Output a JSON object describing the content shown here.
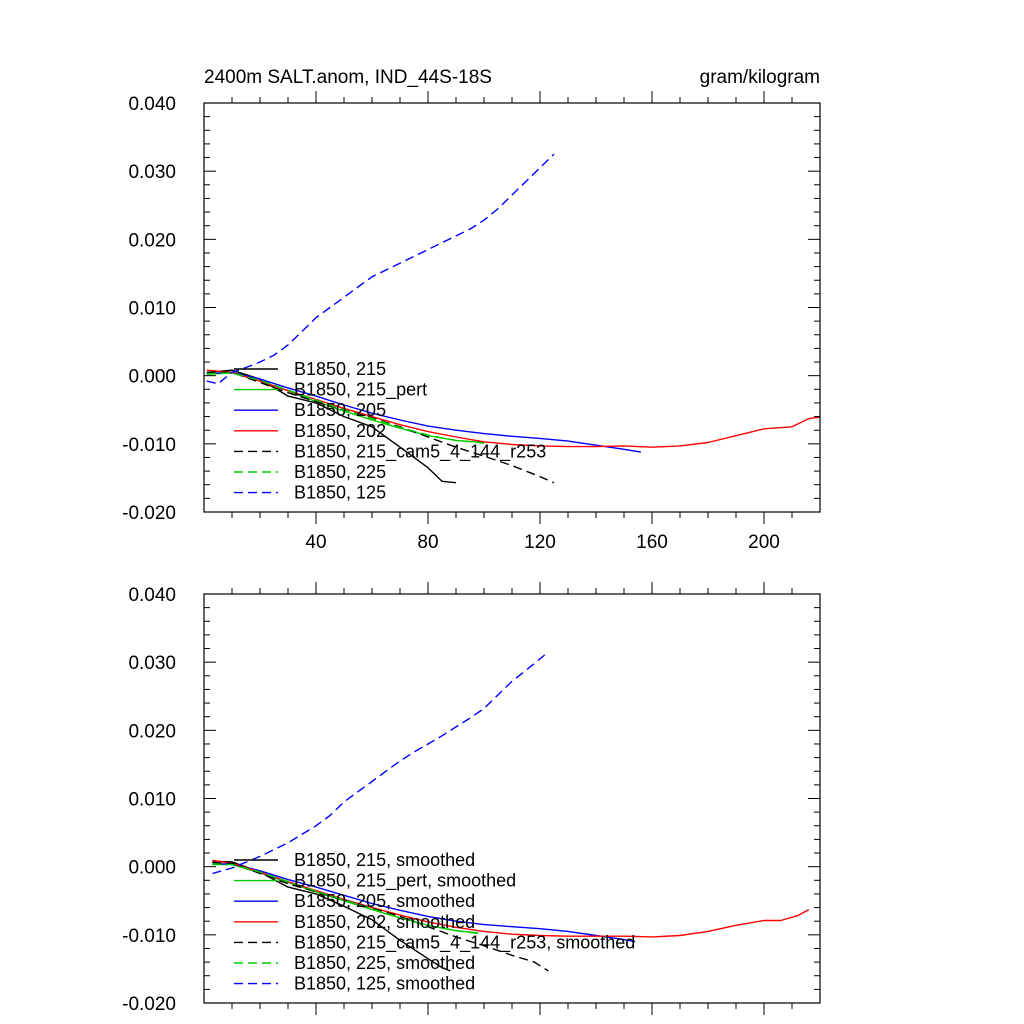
{
  "chart_data": [
    {
      "type": "line",
      "title": "2400m SALT.anom, IND_44S-18S",
      "units": "gram/kilogram",
      "xlabel": "",
      "ylabel": "",
      "xlim": [
        0,
        220
      ],
      "ylim": [
        -0.02,
        0.04
      ],
      "x_ticks": [
        40,
        80,
        120,
        160,
        200
      ],
      "x_tick_labels": [
        "40",
        "80",
        "120",
        "160",
        "200"
      ],
      "y_ticks": [
        0.04,
        0.03,
        0.02,
        0.01,
        0.0,
        -0.01,
        -0.02
      ],
      "y_tick_labels": [
        "0.040",
        "0.030",
        "0.020",
        "0.010",
        "0.000",
        "-0.010",
        "-0.020"
      ],
      "legend_position": "lower-left",
      "series": [
        {
          "name": "B1850, 215",
          "color": "#000000",
          "dash": "solid",
          "x": [
            1,
            10,
            20,
            30,
            40,
            50,
            60,
            70,
            80,
            85,
            90
          ],
          "y": [
            0.0005,
            0.0008,
            -0.0005,
            -0.003,
            -0.004,
            -0.006,
            -0.0075,
            -0.0105,
            -0.0135,
            -0.0155,
            -0.0157
          ]
        },
        {
          "name": "B1850, 215_pert",
          "color": "#00cc00",
          "dash": "solid",
          "x": [
            1,
            10,
            20,
            30,
            40,
            50,
            60,
            70,
            80,
            90,
            100
          ],
          "y": [
            0.0002,
            0.0004,
            -0.0008,
            -0.0022,
            -0.0038,
            -0.0052,
            -0.0065,
            -0.0077,
            -0.0088,
            -0.0095,
            -0.0098
          ]
        },
        {
          "name": "B1850, 205",
          "color": "#0000ff",
          "dash": "solid",
          "x": [
            1,
            10,
            20,
            30,
            40,
            50,
            60,
            70,
            80,
            90,
            100,
            110,
            120,
            130,
            140,
            150,
            156
          ],
          "y": [
            0.0003,
            0.0005,
            -0.0005,
            -0.0018,
            -0.003,
            -0.0043,
            -0.0055,
            -0.0065,
            -0.0074,
            -0.008,
            -0.0085,
            -0.0089,
            -0.0092,
            -0.0096,
            -0.0102,
            -0.0108,
            -0.0112
          ]
        },
        {
          "name": "B1850, 202",
          "color": "#ff0000",
          "dash": "solid",
          "x": [
            1,
            10,
            20,
            30,
            40,
            50,
            60,
            70,
            80,
            90,
            100,
            110,
            120,
            130,
            140,
            150,
            160,
            170,
            180,
            190,
            200,
            210,
            216,
            220
          ],
          "y": [
            0.0008,
            0.0005,
            -0.0008,
            -0.0022,
            -0.0035,
            -0.0048,
            -0.006,
            -0.0072,
            -0.0082,
            -0.009,
            -0.0097,
            -0.0101,
            -0.0103,
            -0.0104,
            -0.0104,
            -0.0103,
            -0.0105,
            -0.0103,
            -0.0098,
            -0.0088,
            -0.0078,
            -0.0075,
            -0.0063,
            -0.0061
          ]
        },
        {
          "name": "B1850, 215_cam5_4_144_r253",
          "color": "#000000",
          "dash": "dashed",
          "x": [
            1,
            10,
            20,
            30,
            40,
            50,
            60,
            70,
            80,
            90,
            100,
            110,
            120,
            125
          ],
          "y": [
            0.0005,
            0.0005,
            -0.001,
            -0.0025,
            -0.0038,
            -0.005,
            -0.0062,
            -0.0075,
            -0.009,
            -0.0105,
            -0.0118,
            -0.0132,
            -0.0148,
            -0.0157
          ]
        },
        {
          "name": "B1850, 225",
          "color": "#00cc00",
          "dash": "dashed",
          "x": [
            1,
            10,
            20,
            30,
            40,
            50,
            60,
            70,
            80,
            90,
            100
          ],
          "y": [
            0.0003,
            0.0004,
            -0.0007,
            -0.0021,
            -0.0036,
            -0.005,
            -0.0063,
            -0.0076,
            -0.0087,
            -0.0095,
            -0.0099
          ]
        },
        {
          "name": "B1850, 125",
          "color": "#0000ff",
          "dash": "dashed",
          "x": [
            1,
            5,
            10,
            15,
            20,
            25,
            30,
            35,
            40,
            45,
            50,
            55,
            60,
            65,
            70,
            75,
            80,
            85,
            90,
            95,
            100,
            105,
            110,
            115,
            120,
            125
          ],
          "y": [
            -0.0008,
            -0.0012,
            0.0005,
            0.0012,
            0.002,
            0.003,
            0.0045,
            0.0065,
            0.0085,
            0.01,
            0.0115,
            0.013,
            0.0145,
            0.0155,
            0.0165,
            0.0175,
            0.0185,
            0.0195,
            0.0205,
            0.0215,
            0.0228,
            0.0245,
            0.0265,
            0.0285,
            0.0305,
            0.0325
          ]
        }
      ]
    },
    {
      "type": "line",
      "title": "",
      "xlabel": "",
      "ylabel": "",
      "xlim": [
        0,
        220
      ],
      "ylim": [
        -0.02,
        0.04
      ],
      "x_ticks": [
        40,
        80,
        120,
        160,
        200
      ],
      "x_tick_labels": [],
      "y_ticks": [
        0.04,
        0.03,
        0.02,
        0.01,
        0.0,
        -0.01,
        -0.02
      ],
      "y_tick_labels": [
        "0.040",
        "0.030",
        "0.020",
        "0.010",
        "0.000",
        "-0.010",
        "-0.020"
      ],
      "legend_position": "lower-left",
      "series": [
        {
          "name": "B1850, 215, smoothed",
          "color": "#000000",
          "dash": "solid",
          "x": [
            3,
            10,
            20,
            30,
            40,
            50,
            60,
            70,
            80,
            85,
            88
          ],
          "y": [
            0.0008,
            0.0007,
            -0.0008,
            -0.003,
            -0.004,
            -0.0058,
            -0.0078,
            -0.0108,
            -0.0135,
            -0.0148,
            -0.0153
          ]
        },
        {
          "name": "B1850, 215_pert, smoothed",
          "color": "#00cc00",
          "dash": "solid",
          "x": [
            3,
            10,
            20,
            30,
            40,
            50,
            60,
            70,
            80,
            90,
            98
          ],
          "y": [
            0.0003,
            0.0003,
            -0.0009,
            -0.0023,
            -0.0037,
            -0.005,
            -0.0063,
            -0.0075,
            -0.0086,
            -0.0094,
            -0.0097
          ]
        },
        {
          "name": "B1850, 205, smoothed",
          "color": "#0000ff",
          "dash": "solid",
          "x": [
            3,
            10,
            20,
            30,
            40,
            50,
            60,
            70,
            80,
            90,
            100,
            110,
            120,
            130,
            140,
            150,
            154
          ],
          "y": [
            0.0004,
            0.0004,
            -0.0006,
            -0.0019,
            -0.003,
            -0.0042,
            -0.0054,
            -0.0064,
            -0.0073,
            -0.008,
            -0.0085,
            -0.0088,
            -0.0091,
            -0.0095,
            -0.0101,
            -0.0107,
            -0.011
          ]
        },
        {
          "name": "B1850, 202, smoothed",
          "color": "#ff0000",
          "dash": "solid",
          "x": [
            3,
            10,
            20,
            30,
            40,
            50,
            60,
            70,
            80,
            90,
            100,
            110,
            120,
            130,
            140,
            150,
            160,
            170,
            180,
            190,
            200,
            206,
            212,
            216
          ],
          "y": [
            0.0009,
            0.0005,
            -0.0008,
            -0.0022,
            -0.0035,
            -0.0048,
            -0.006,
            -0.0071,
            -0.0081,
            -0.0089,
            -0.0095,
            -0.0099,
            -0.0101,
            -0.0102,
            -0.0102,
            -0.0102,
            -0.0103,
            -0.0101,
            -0.0095,
            -0.0086,
            -0.0079,
            -0.0079,
            -0.0072,
            -0.0063
          ]
        },
        {
          "name": "B1850, 215_cam5_4_144_r253, smoothed",
          "color": "#000000",
          "dash": "dashed",
          "x": [
            3,
            10,
            20,
            30,
            40,
            50,
            60,
            70,
            80,
            90,
            100,
            110,
            118,
            123
          ],
          "y": [
            0.0006,
            0.0005,
            -0.001,
            -0.0025,
            -0.0037,
            -0.0049,
            -0.0061,
            -0.0073,
            -0.0088,
            -0.0103,
            -0.0116,
            -0.013,
            -0.014,
            -0.0153
          ]
        },
        {
          "name": "B1850, 225, smoothed",
          "color": "#00cc00",
          "dash": "dashed",
          "x": [
            3,
            10,
            20,
            30,
            40,
            50,
            60,
            70,
            80,
            90,
            98
          ],
          "y": [
            0.0004,
            0.0003,
            -0.0008,
            -0.0022,
            -0.0036,
            -0.0049,
            -0.0062,
            -0.0075,
            -0.0086,
            -0.0094,
            -0.0098
          ]
        },
        {
          "name": "B1850, 125, smoothed",
          "color": "#0000ff",
          "dash": "dashed",
          "x": [
            3,
            10,
            20,
            30,
            40,
            45,
            50,
            55,
            60,
            65,
            70,
            75,
            80,
            85,
            90,
            95,
            100,
            105,
            110,
            115,
            120,
            123
          ],
          "y": [
            -0.001,
            -0.0002,
            0.0015,
            0.0035,
            0.006,
            0.0075,
            0.0095,
            0.011,
            0.0125,
            0.014,
            0.0155,
            0.0168,
            0.018,
            0.0192,
            0.0205,
            0.0218,
            0.0232,
            0.0252,
            0.0272,
            0.0288,
            0.0305,
            0.0315
          ]
        }
      ]
    }
  ]
}
